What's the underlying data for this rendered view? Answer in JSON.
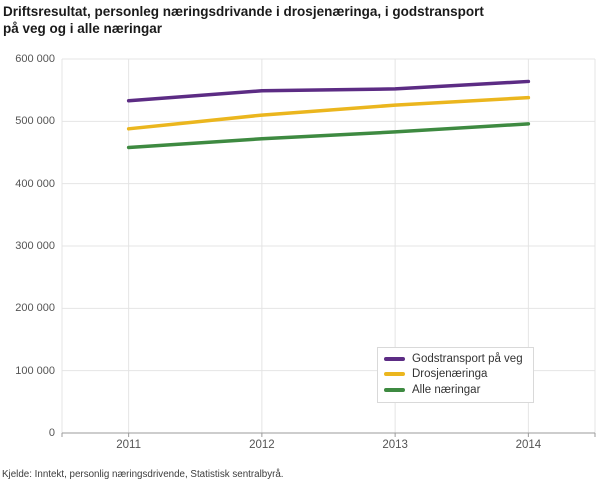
{
  "title": {
    "line1": "Driftsresultat, personleg næringsdrivande i drosjenæringa, i godstransport",
    "line2": "på veg og i alle næringar"
  },
  "source": "Kjelde: Inntekt, personlig næringsdrivende, Statistisk sentralbyrå.",
  "colors": {
    "grid": "#e4e4e4",
    "axis": "#9b9b9b",
    "tick_label": "#545454",
    "legend_border": "#d9d9d9"
  },
  "chart_data": {
    "type": "line",
    "categories": [
      "2011",
      "2012",
      "2013",
      "2014"
    ],
    "series": [
      {
        "name": "Godstransport på veg",
        "color": "#5c2c84",
        "values": [
          533000,
          549000,
          552000,
          564000
        ]
      },
      {
        "name": "Drosjenæringa",
        "color": "#ebb61e",
        "values": [
          488000,
          510000,
          526000,
          538000
        ]
      },
      {
        "name": "Alle næringar",
        "color": "#3e8a41",
        "values": [
          458000,
          472000,
          483000,
          496000
        ]
      }
    ],
    "ylim": [
      0,
      600000
    ],
    "y_tick_step": 100000,
    "y_tick_labels": [
      "0",
      "100 000",
      "200 000",
      "300 000",
      "400 000",
      "500 000",
      "600 000"
    ],
    "grid": true,
    "legend_position": "inside-bottom-right"
  }
}
